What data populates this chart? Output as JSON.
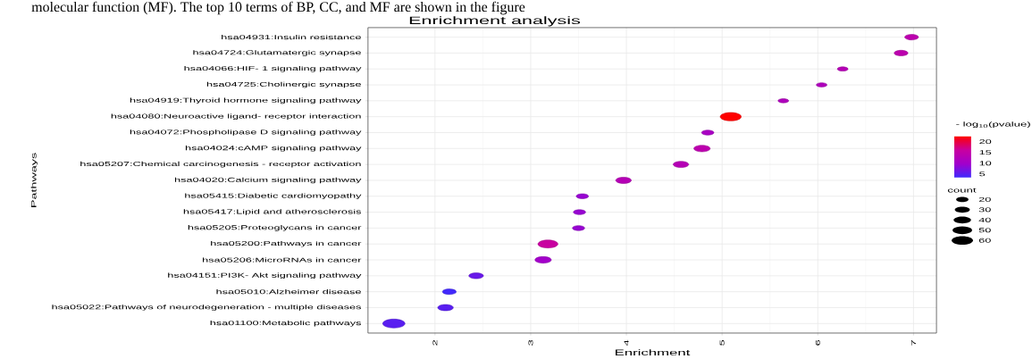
{
  "chart_data": {
    "type": "bubble",
    "orientation": "horizontal",
    "title": "Enrichment analysis",
    "xlabel": "Enrichment",
    "ylabel": "Pathways",
    "clabel": "- log$_{10}$(pvalue)",
    "legend_title": "count",
    "annotations": [
      "molecular function (MF). The top 10 terms of BP, CC, and MF are shown in the figure"
    ],
    "categories": [
      "hsa04931:Insulin resistance",
      "hsa04724:Glutamatergic synapse",
      "hsa04066:HIF- 1 signaling pathway",
      "hsa04725:Cholinergic synapse",
      "hsa04919:Thyroid hormone signaling pathway",
      "hsa04080:Neuroactive ligand- receptor interaction",
      "hsa04072:Phospholipase D signaling pathway",
      "hsa04024:cAMP signaling pathway",
      "hsa05207:Chemical carcinogenesis -  receptor activation",
      "hsa04020:Calcium signaling pathway",
      "hsa05415:Diabetic cardiomyopathy",
      "hsa05417:Lipid and atherosclerosis",
      "hsa05205:Proteoglycans in cancer",
      "hsa05200:Pathways in cancer",
      "hsa05206:MicroRNAs in cancer",
      "hsa04151:PI3K- Akt signaling pathway",
      "hsa05010:Alzheimer disease",
      "hsa05022:Pathways of neurodegeneration -  multiple diseases",
      "hsa01100:Metabolic pathways"
    ],
    "values": [
      6.98,
      6.87,
      6.26,
      6.04,
      5.64,
      5.09,
      4.85,
      4.79,
      4.57,
      3.97,
      3.54,
      3.51,
      3.5,
      3.18,
      3.13,
      2.43,
      2.15,
      2.11,
      1.57
    ],
    "sizes": [
      25,
      25,
      15,
      15,
      15,
      58,
      20,
      35,
      32,
      32,
      20,
      20,
      20,
      52,
      35,
      28,
      25,
      32,
      65
    ],
    "cvalues": [
      14,
      14,
      13,
      12,
      12,
      22.5,
      11,
      14,
      13,
      13,
      9,
      9,
      9,
      16,
      10,
      6,
      3.5,
      5,
      5
    ],
    "size_legend": [
      20,
      30,
      40,
      50,
      60
    ],
    "clim": [
      3.1,
      22.5
    ],
    "cticks": [
      5,
      10,
      15,
      20
    ],
    "xlim": [
      1.3,
      7.24
    ],
    "xticks": [
      2,
      3,
      4,
      5,
      6,
      7
    ],
    "grid": true
  }
}
